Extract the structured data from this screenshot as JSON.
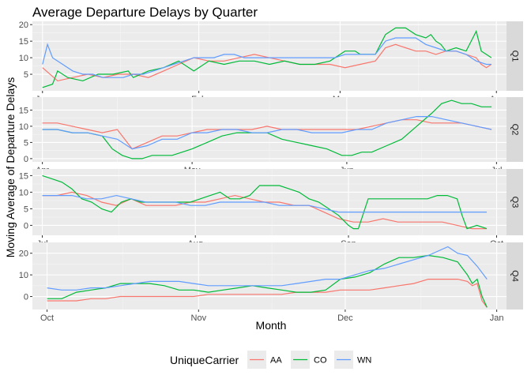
{
  "chart_data": {
    "type": "line",
    "title": "Average Departure Delays by Quarter",
    "xlabel": "Month",
    "ylabel": "Moving Average of Departure Delays",
    "legend": {
      "title": "UniqueCarrier",
      "position": "bottom"
    },
    "series_names": [
      "AA",
      "CO",
      "WN"
    ],
    "colors": {
      "AA": "#F8766D",
      "CO": "#00BA38",
      "WN": "#619CFF"
    },
    "facets": [
      {
        "label": "Q1",
        "x_ticks": [
          "Jan",
          "Feb",
          "Mar",
          "Apr"
        ],
        "x_tick_days": [
          0,
          31,
          59,
          90
        ],
        "x_range": [
          -2,
          92
        ],
        "y_ticks": [
          5,
          10,
          15,
          20
        ],
        "y_range": [
          0,
          21
        ],
        "series": [
          {
            "name": "AA",
            "x": [
              0,
              3,
              6,
              9,
              12,
              15,
              18,
              21,
              24,
              27,
              30,
              33,
              36,
              39,
              42,
              45,
              48,
              51,
              54,
              57,
              60,
              63,
              66,
              68,
              70,
              72,
              74,
              76,
              78,
              80,
              82,
              84,
              86,
              87,
              88,
              89
            ],
            "y": [
              7,
              3,
              4,
              5,
              4,
              5,
              5,
              4,
              6,
              8,
              10,
              9,
              9,
              10,
              11,
              10,
              9,
              8,
              8,
              8,
              7,
              8,
              9,
              13,
              14,
              13,
              12,
              12,
              11,
              12,
              12,
              11,
              10,
              8,
              7,
              8
            ]
          },
          {
            "name": "CO",
            "x": [
              0,
              2,
              3,
              5,
              8,
              11,
              14,
              17,
              18,
              21,
              24,
              27,
              30,
              33,
              36,
              39,
              42,
              45,
              48,
              51,
              54,
              57,
              60,
              62,
              63,
              66,
              68,
              70,
              72,
              74,
              76,
              77,
              78,
              79,
              80,
              82,
              84,
              85,
              86,
              87,
              88,
              89
            ],
            "y": [
              1,
              2,
              6,
              4,
              3,
              5,
              5,
              6,
              4,
              6,
              7,
              9,
              6,
              9,
              8,
              9,
              9,
              8,
              9,
              8,
              8,
              9,
              12,
              12,
              11,
              11,
              17,
              19,
              19,
              17,
              16,
              17,
              15,
              14,
              12,
              13,
              12,
              15,
              18,
              12,
              11,
              10
            ]
          },
          {
            "name": "WN",
            "x": [
              0,
              1,
              2,
              4,
              6,
              8,
              10,
              12,
              14,
              16,
              18,
              20,
              22,
              24,
              26,
              28,
              30,
              32,
              34,
              36,
              38,
              40,
              42,
              44,
              46,
              48,
              50,
              52,
              54,
              56,
              58,
              60,
              62,
              64,
              66,
              68,
              70,
              72,
              74,
              76,
              78,
              80,
              82,
              84,
              86,
              88,
              89
            ],
            "y": [
              8,
              14,
              10,
              8,
              6,
              5,
              5,
              4,
              4,
              4,
              5,
              5,
              6,
              7,
              8,
              9,
              10,
              10,
              10,
              11,
              11,
              10,
              10,
              10,
              10,
              10,
              10,
              10,
              10,
              10,
              10,
              11,
              11,
              11,
              11,
              15,
              16,
              16,
              16,
              14,
              13,
              12,
              12,
              11,
              9,
              8,
              8
            ]
          }
        ]
      },
      {
        "label": "Q2",
        "x_ticks": [
          "Apr",
          "May",
          "Jun",
          "Jul"
        ],
        "x_tick_days": [
          0,
          30,
          61,
          91
        ],
        "x_range": [
          -2,
          93
        ],
        "y_ticks": [
          0,
          5,
          10,
          15
        ],
        "y_range": [
          -1,
          19
        ],
        "series": [
          {
            "name": "AA",
            "x": [
              0,
              3,
              6,
              9,
              12,
              15,
              18,
              21,
              24,
              27,
              30,
              33,
              36,
              39,
              42,
              45,
              48,
              51,
              54,
              57,
              60,
              63,
              66,
              69,
              72,
              75,
              78,
              81,
              84,
              87,
              90
            ],
            "y": [
              11,
              11,
              10,
              9,
              8,
              9,
              3,
              5,
              7,
              7,
              8,
              9,
              9,
              9,
              9,
              10,
              9,
              9,
              9,
              9,
              9,
              9,
              10,
              11,
              12,
              12,
              11,
              11,
              11,
              10,
              9
            ]
          },
          {
            "name": "CO",
            "x": [
              0,
              3,
              6,
              9,
              12,
              14,
              16,
              18,
              20,
              22,
              24,
              26,
              28,
              30,
              33,
              36,
              39,
              42,
              45,
              48,
              51,
              54,
              57,
              60,
              62,
              64,
              66,
              69,
              72,
              75,
              78,
              80,
              82,
              84,
              86,
              88,
              90
            ],
            "y": [
              9,
              9,
              8,
              8,
              7,
              3,
              1,
              0,
              0,
              1,
              1,
              1,
              2,
              3,
              5,
              7,
              8,
              8,
              8,
              6,
              5,
              4,
              3,
              1,
              1,
              2,
              2,
              4,
              6,
              10,
              14,
              17,
              18,
              17,
              17,
              16,
              16
            ]
          },
          {
            "name": "WN",
            "x": [
              0,
              3,
              6,
              9,
              12,
              15,
              18,
              21,
              24,
              27,
              30,
              33,
              36,
              39,
              42,
              45,
              48,
              51,
              54,
              57,
              60,
              63,
              66,
              69,
              72,
              75,
              78,
              81,
              84,
              87,
              90
            ],
            "y": [
              9,
              9,
              8,
              8,
              7,
              6,
              3,
              4,
              6,
              6,
              8,
              8,
              9,
              9,
              8,
              8,
              9,
              9,
              8,
              8,
              8,
              9,
              9,
              11,
              12,
              13,
              13,
              12,
              11,
              10,
              9
            ]
          }
        ]
      },
      {
        "label": "Q3",
        "x_ticks": [
          "Jul",
          "Aug",
          "Sep",
          "Oct"
        ],
        "x_tick_days": [
          0,
          31,
          62,
          92
        ],
        "x_range": [
          -2,
          94
        ],
        "y_ticks": [
          0,
          5,
          10,
          15
        ],
        "y_range": [
          -3,
          17
        ],
        "series": [
          {
            "name": "AA",
            "x": [
              0,
              3,
              6,
              9,
              12,
              15,
              18,
              21,
              24,
              27,
              30,
              33,
              36,
              39,
              42,
              45,
              48,
              51,
              54,
              57,
              60,
              63,
              66,
              69,
              72,
              75,
              78,
              81,
              84,
              87,
              90
            ],
            "y": [
              9,
              9,
              10,
              9,
              7,
              6,
              8,
              6,
              6,
              6,
              7,
              7,
              8,
              9,
              8,
              7,
              7,
              6,
              6,
              4,
              2,
              1,
              1,
              2,
              1,
              1,
              1,
              1,
              0,
              -1,
              -1
            ]
          },
          {
            "name": "CO",
            "x": [
              0,
              2,
              4,
              6,
              8,
              10,
              12,
              14,
              16,
              18,
              20,
              22,
              24,
              26,
              28,
              30,
              32,
              34,
              36,
              38,
              40,
              42,
              44,
              46,
              48,
              50,
              52,
              54,
              56,
              58,
              60,
              62,
              63,
              64,
              66,
              68,
              70,
              72,
              74,
              76,
              78,
              80,
              82,
              84,
              85,
              86,
              88,
              90
            ],
            "y": [
              15,
              14,
              13,
              11,
              8,
              7,
              5,
              4,
              7,
              8,
              7,
              7,
              7,
              7,
              7,
              7,
              8,
              9,
              10,
              8,
              8,
              9,
              12,
              12,
              12,
              11,
              10,
              8,
              7,
              5,
              3,
              0,
              -1,
              -1,
              8,
              8,
              8,
              8,
              8,
              8,
              8,
              9,
              9,
              8,
              3,
              -1,
              0,
              -1
            ]
          },
          {
            "name": "WN",
            "x": [
              0,
              3,
              6,
              9,
              12,
              15,
              18,
              21,
              24,
              27,
              30,
              33,
              36,
              39,
              42,
              45,
              48,
              51,
              54,
              57,
              60,
              63,
              66,
              69,
              72,
              75,
              78,
              81,
              84,
              87,
              90
            ],
            "y": [
              9,
              9,
              9,
              8,
              8,
              9,
              8,
              7,
              7,
              7,
              6,
              6,
              7,
              7,
              7,
              7,
              6,
              6,
              6,
              5,
              4,
              4,
              4,
              4,
              4,
              4,
              4,
              4,
              4,
              4,
              4
            ]
          }
        ]
      },
      {
        "label": "Q4",
        "x_ticks": [
          "Oct",
          "Nov",
          "Dec",
          "Jan"
        ],
        "x_tick_days": [
          0,
          31,
          61,
          92
        ],
        "x_range": [
          -3,
          94
        ],
        "y_ticks": [
          0,
          10,
          20
        ],
        "y_range": [
          -6,
          25
        ],
        "series": [
          {
            "name": "AA",
            "x": [
              0,
              3,
              6,
              9,
              12,
              15,
              18,
              21,
              24,
              27,
              30,
              33,
              36,
              39,
              42,
              45,
              48,
              51,
              54,
              57,
              60,
              63,
              66,
              69,
              72,
              75,
              78,
              81,
              84,
              86,
              87,
              88,
              89,
              90
            ],
            "y": [
              -2,
              -2,
              -2,
              -1,
              -1,
              0,
              0,
              0,
              0,
              0,
              0,
              1,
              1,
              1,
              1,
              1,
              1,
              2,
              2,
              2,
              3,
              3,
              3,
              4,
              5,
              6,
              8,
              8,
              8,
              7,
              5,
              6,
              -2,
              -5
            ]
          },
          {
            "name": "CO",
            "x": [
              0,
              3,
              6,
              9,
              12,
              15,
              18,
              21,
              24,
              27,
              30,
              33,
              36,
              39,
              42,
              45,
              48,
              51,
              54,
              57,
              60,
              63,
              66,
              69,
              72,
              75,
              78,
              81,
              84,
              86,
              87,
              88,
              89,
              90
            ],
            "y": [
              -1,
              -1,
              2,
              3,
              4,
              6,
              6,
              6,
              5,
              3,
              3,
              2,
              3,
              4,
              5,
              4,
              3,
              2,
              2,
              3,
              8,
              9,
              11,
              15,
              18,
              18,
              19,
              18,
              16,
              10,
              6,
              8,
              0,
              -5
            ]
          },
          {
            "name": "WN",
            "x": [
              0,
              3,
              6,
              9,
              12,
              15,
              18,
              21,
              24,
              27,
              30,
              33,
              36,
              39,
              42,
              45,
              48,
              51,
              54,
              57,
              60,
              63,
              66,
              69,
              72,
              75,
              78,
              80,
              82,
              84,
              86,
              88,
              90
            ],
            "y": [
              4,
              3,
              3,
              4,
              4,
              5,
              6,
              7,
              7,
              7,
              6,
              5,
              5,
              5,
              5,
              5,
              5,
              6,
              7,
              8,
              8,
              10,
              12,
              13,
              15,
              17,
              19,
              21,
              23,
              20,
              19,
              14,
              8
            ]
          }
        ]
      }
    ]
  }
}
